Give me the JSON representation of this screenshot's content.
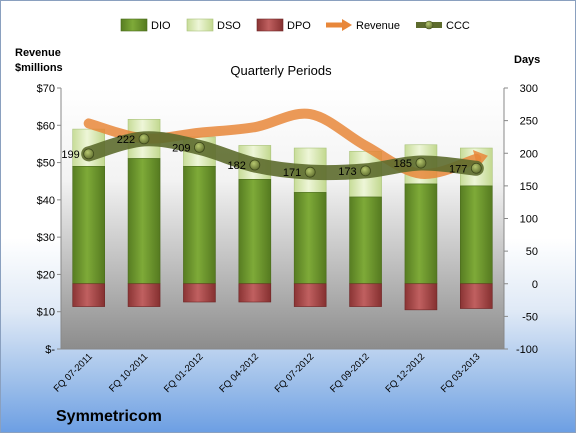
{
  "chart_data": {
    "type": "bar",
    "title": "Quarterly Periods",
    "company": "Symmetricom",
    "left_axis": {
      "label_line1": "Revenue",
      "label_line2": "$millions",
      "range": [
        0,
        70
      ],
      "ticks": [
        0,
        10,
        20,
        30,
        40,
        50,
        60,
        70
      ],
      "tick_labels": [
        "$-",
        "$10",
        "$20",
        "$30",
        "$40",
        "$50",
        "$60",
        "$70"
      ]
    },
    "right_axis": {
      "label": "Days",
      "range": [
        -100,
        300
      ],
      "ticks": [
        -100,
        -50,
        0,
        50,
        100,
        150,
        200,
        250,
        300
      ],
      "tick_labels": [
        "-100",
        "-50",
        "0",
        "50",
        "100",
        "150",
        "200",
        "250",
        "300"
      ]
    },
    "categories": [
      "FQ 07-2011",
      "FQ 10-2011",
      "FQ 01-2012",
      "FQ 04-2012",
      "FQ 07-2012",
      "FQ 09-2012",
      "FQ 12-2012",
      "FQ 03-2013"
    ],
    "series": [
      {
        "name": "DIO",
        "kind": "stacked-bar",
        "axis": "right",
        "values": [
          180,
          192,
          180,
          160,
          140,
          133,
          153,
          150
        ],
        "color": "#6e9a2e"
      },
      {
        "name": "DSO",
        "kind": "stacked-bar",
        "axis": "right",
        "values": [
          57,
          60,
          45,
          52,
          68,
          70,
          60,
          58
        ],
        "color": "#dbe9b8"
      },
      {
        "name": "DPO",
        "kind": "negative-bar",
        "axis": "right",
        "values": [
          -35,
          -35,
          -28,
          -28,
          -35,
          -35,
          -40,
          -38
        ],
        "color": "#a84a4a"
      },
      {
        "name": "Revenue",
        "kind": "line",
        "axis": "left",
        "values": [
          60.5,
          56.5,
          58,
          59.5,
          63,
          54.5,
          47,
          51
        ],
        "color": "#e8873a"
      },
      {
        "name": "CCC",
        "kind": "line",
        "axis": "right",
        "values": [
          199,
          222,
          209,
          182,
          171,
          173,
          185,
          177
        ],
        "color": "#5d6b2d",
        "labels": [
          "199",
          "222",
          "209",
          "182",
          "171",
          "173",
          "185",
          "177"
        ]
      }
    ],
    "legend_position": "top",
    "grid": false
  }
}
